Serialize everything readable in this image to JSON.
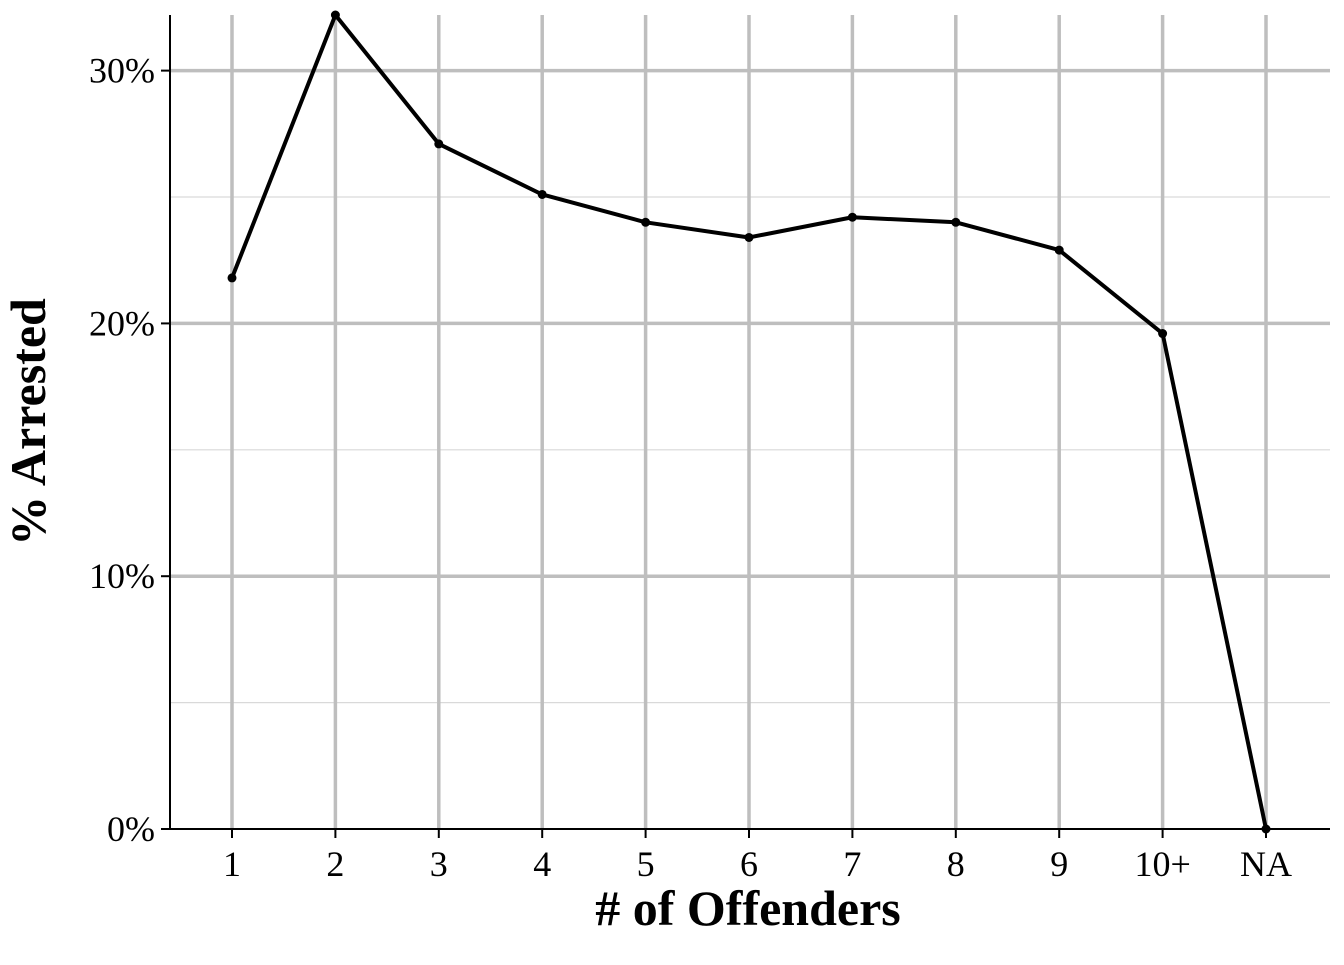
{
  "chart_data": {
    "type": "line",
    "title": "",
    "xlabel": "# of Offenders",
    "ylabel": "% Arrested",
    "categories": [
      "1",
      "2",
      "3",
      "4",
      "5",
      "6",
      "7",
      "8",
      "9",
      "10+",
      "NA"
    ],
    "series": [
      {
        "values": [
          21.8,
          32.2,
          27.1,
          25.1,
          24.0,
          23.4,
          24.2,
          24.0,
          22.9,
          19.6,
          0.0
        ]
      }
    ],
    "ylim": [
      0,
      32.2
    ],
    "y_ticks": [
      0,
      10,
      20,
      30
    ],
    "y_tick_labels": [
      "0%",
      "10%",
      "20%",
      "30%"
    ],
    "y_minor_ticks": [
      5,
      15,
      25
    ],
    "grid": true,
    "legend": "none",
    "colors": {
      "line": "#000000",
      "grid_major": "#bebebe",
      "grid_minor": "#d9d9d9",
      "axis": "#000000"
    }
  }
}
